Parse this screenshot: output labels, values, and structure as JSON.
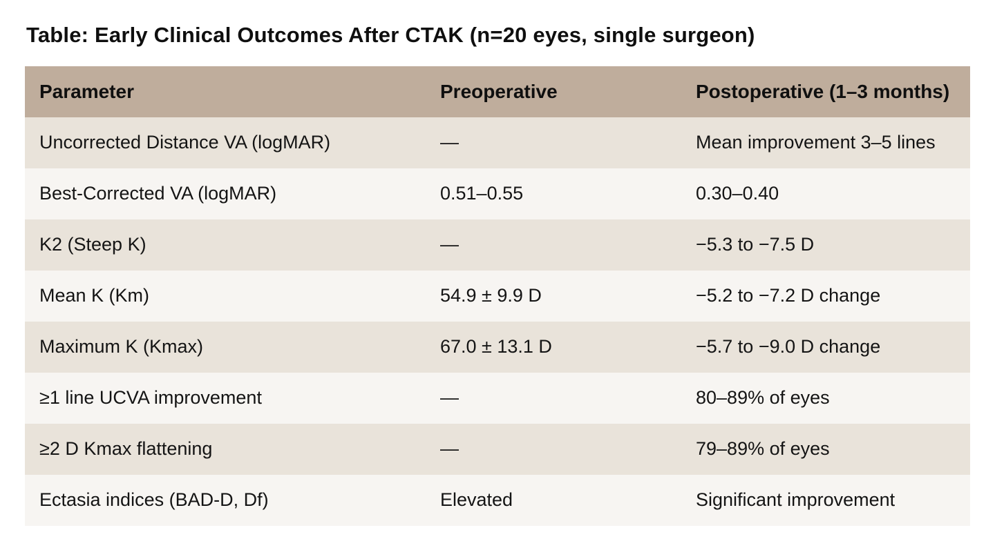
{
  "page_title": "Table: Early Clinical Outcomes After CTAK (n=20 eyes, single surgeon)",
  "chart_data": {
    "type": "table",
    "title": "Table: Early Clinical Outcomes After CTAK (n=20 eyes, single surgeon)",
    "columns": [
      "Parameter",
      "Preoperative",
      "Postoperative (1–3 months)"
    ],
    "rows": [
      [
        "Uncorrected Distance VA (logMAR)",
        "—",
        "Mean improvement 3–5 lines"
      ],
      [
        "Best-Corrected VA (logMAR)",
        "0.51–0.55",
        "0.30–0.40"
      ],
      [
        "K2 (Steep K)",
        "—",
        "−5.3 to −7.5 D"
      ],
      [
        "Mean K (Km)",
        "54.9 ± 9.9 D",
        "−5.2 to −7.2 D change"
      ],
      [
        "Maximum K (Kmax)",
        "67.0 ± 13.1 D",
        "−5.7 to −9.0 D change"
      ],
      [
        "≥1 line UCVA improvement",
        "—",
        "80–89% of eyes"
      ],
      [
        "≥2 D Kmax flattening",
        "—",
        "79–89% of eyes"
      ],
      [
        "Ectasia indices (BAD-D, Df)",
        "Elevated",
        "Significant improvement"
      ]
    ]
  },
  "colors": {
    "header_bg": "#bfad9c",
    "row_odd_bg": "#e9e3da",
    "row_even_bg": "#f7f5f2",
    "text": "#141414",
    "page_bg": "#ffffff"
  }
}
